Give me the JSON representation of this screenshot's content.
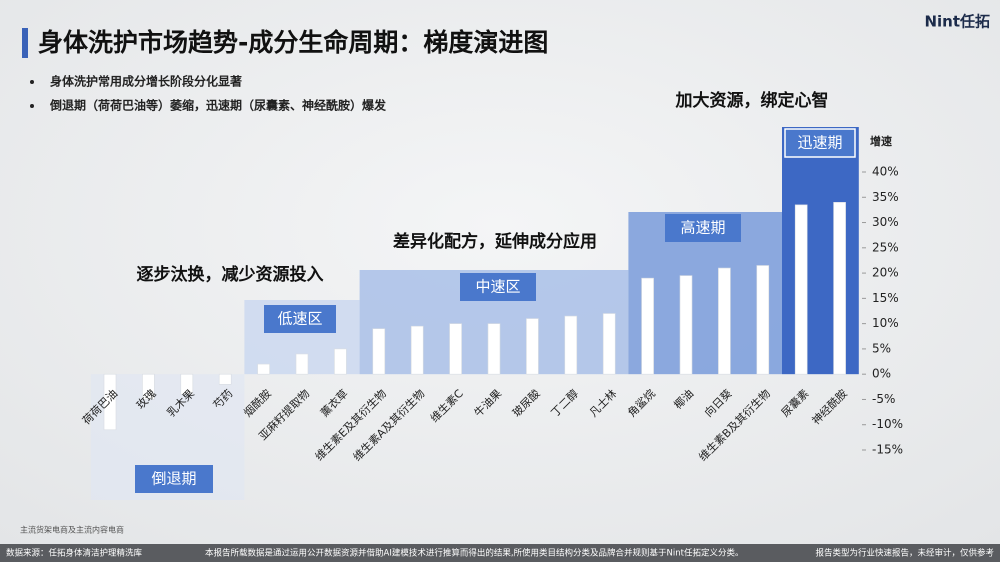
{
  "header": {
    "title": "身体洗护市场趋势-成分生命周期：梯度演进图",
    "logo": "Nint任拓",
    "bullets": [
      "身体洗护常用成分增长阶段分化显著",
      "倒退期（荷荷巴油等）萎缩，迅速期（尿囊素、神经酰胺）爆发"
    ]
  },
  "chart_data": {
    "type": "bar",
    "y_axis_label": "增速",
    "categories": [
      "荷荷巴油",
      "玫瑰",
      "乳木果",
      "芍药",
      "烟酰胺",
      "亚麻籽提取物",
      "薰衣草",
      "维生素E及其衍生物",
      "维生素A及其衍生物",
      "维生素C",
      "牛油果",
      "玻尿酸",
      "丁二醇",
      "凡士林",
      "角鲨烷",
      "椰油",
      "向日葵",
      "维生素B及其衍生物",
      "尿囊素",
      "神经酰胺"
    ],
    "values": [
      -11,
      -5,
      -4,
      -2,
      2,
      4,
      5,
      9,
      9.5,
      10,
      10,
      11,
      11.5,
      12,
      19,
      19.5,
      21,
      21.5,
      33.5,
      34
    ],
    "color": "#ffffff",
    "ylim": [
      -15,
      40
    ],
    "yticks": [
      {
        "value": 40,
        "label": "40%"
      },
      {
        "value": 35,
        "label": "35%"
      },
      {
        "value": 30,
        "label": "30%"
      },
      {
        "value": 25,
        "label": "25%"
      },
      {
        "value": 20,
        "label": "20%"
      },
      {
        "value": 15,
        "label": "15%"
      },
      {
        "value": 10,
        "label": "10%"
      },
      {
        "value": 5,
        "label": "5%"
      },
      {
        "value": 0,
        "label": "0%"
      },
      {
        "value": -5,
        "label": "-5%"
      },
      {
        "value": -10,
        "label": "-10%"
      },
      {
        "value": -15,
        "label": "-15%"
      }
    ],
    "stages": [
      "倒退期",
      "低速区",
      "中速区",
      "高速期",
      "迅速期"
    ],
    "annotations": [
      "逐步汰换，减少资源投入",
      "差异化配方，延伸成分应用",
      "加大资源，绑定心智"
    ]
  },
  "footer": {
    "scope": "主流货架电商及主流内容电商",
    "source": "数据来源：任拓身体清洁护理精洗库",
    "note": "本报告所载数据是通过运用公开数据资源并借助AI建模技术进行推算而得出的结果,所使用类目结构分类及品牌合并规则基于Nint任拓定义分类。",
    "disclaimer": "报告类型为行业快速报告，未经审计，仅供参考"
  }
}
